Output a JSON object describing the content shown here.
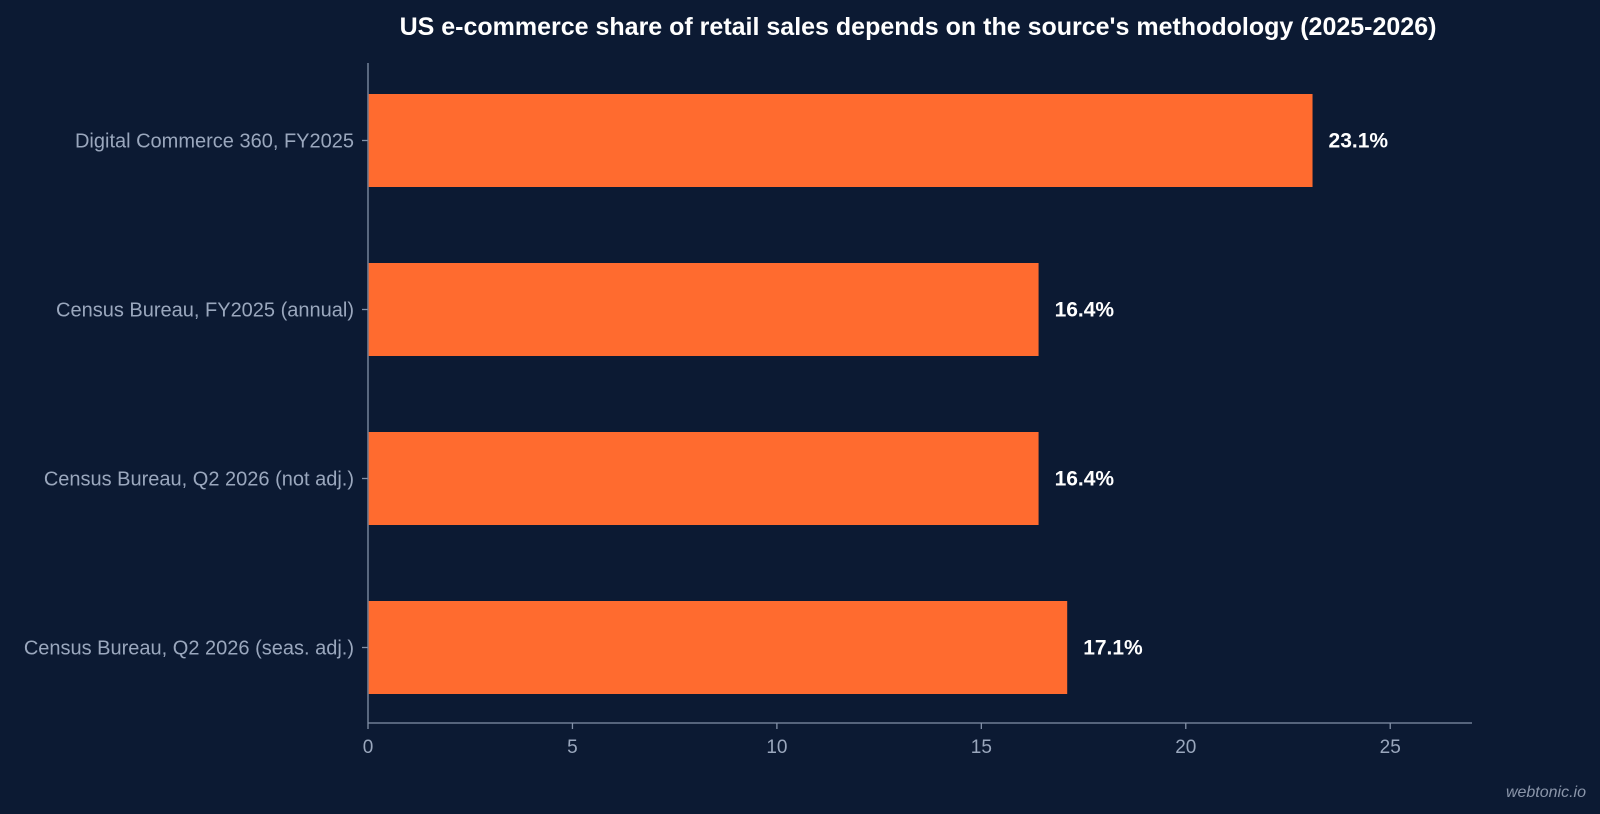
{
  "chart_data": {
    "type": "bar",
    "orientation": "horizontal",
    "title": "US e-commerce share of retail sales depends on the source's methodology (2025-2026)",
    "categories": [
      "Digital Commerce 360, FY2025",
      "Census Bureau, FY2025 (annual)",
      "Census Bureau, Q2 2026 (not adj.)",
      "Census Bureau, Q2 2026 (seas. adj.)"
    ],
    "values": [
      23.1,
      16.4,
      16.4,
      17.1
    ],
    "value_labels": [
      "23.1%",
      "16.4%",
      "16.4%",
      "17.1%"
    ],
    "xticks": [
      0,
      5,
      10,
      15,
      20,
      25
    ],
    "xlim": [
      0,
      27
    ],
    "grid": false,
    "colors": {
      "background": "#0c1a33",
      "bar": "#ff6b2f",
      "axis": "#8391a8"
    }
  },
  "watermark": "webtonic.io"
}
